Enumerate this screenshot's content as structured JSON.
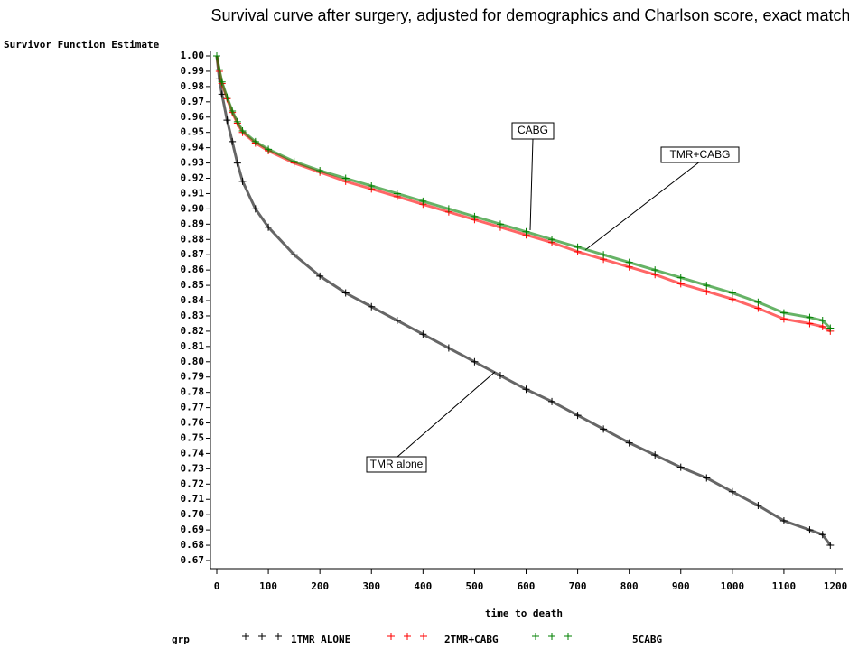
{
  "chart_data": {
    "type": "scatter",
    "title": "Survival curve after surgery, adjusted for demographics and Charlson score, exact matches",
    "y_label": "Survivor Function Estimate",
    "x_label": "time to death",
    "legend_title": "grp",
    "x": [
      0,
      5,
      10,
      20,
      30,
      40,
      50,
      75,
      100,
      150,
      200,
      250,
      300,
      350,
      400,
      450,
      500,
      550,
      600,
      650,
      700,
      750,
      800,
      850,
      900,
      950,
      1000,
      1050,
      1100,
      1150,
      1175,
      1190
    ],
    "series": [
      {
        "name": "1TMR ALONE",
        "color": "#000000",
        "values": [
          1.0,
          0.985,
          0.975,
          0.958,
          0.944,
          0.93,
          0.918,
          0.9,
          0.888,
          0.87,
          0.856,
          0.845,
          0.836,
          0.827,
          0.818,
          0.809,
          0.8,
          0.791,
          0.782,
          0.774,
          0.765,
          0.756,
          0.747,
          0.739,
          0.731,
          0.724,
          0.715,
          0.706,
          0.696,
          0.69,
          0.687,
          0.68
        ]
      },
      {
        "name": "2TMR+CABG",
        "color": "#ff0000",
        "values": [
          1.0,
          0.99,
          0.982,
          0.972,
          0.963,
          0.956,
          0.95,
          0.943,
          0.938,
          0.93,
          0.924,
          0.918,
          0.913,
          0.908,
          0.903,
          0.898,
          0.893,
          0.888,
          0.883,
          0.878,
          0.872,
          0.867,
          0.862,
          0.857,
          0.851,
          0.846,
          0.841,
          0.835,
          0.828,
          0.825,
          0.823,
          0.82
        ]
      },
      {
        "name": "5CABG",
        "color": "#008000",
        "values": [
          1.0,
          0.991,
          0.983,
          0.973,
          0.964,
          0.957,
          0.951,
          0.944,
          0.939,
          0.931,
          0.925,
          0.92,
          0.915,
          0.91,
          0.905,
          0.9,
          0.895,
          0.89,
          0.885,
          0.88,
          0.875,
          0.87,
          0.865,
          0.86,
          0.855,
          0.85,
          0.845,
          0.839,
          0.832,
          0.829,
          0.827,
          0.822
        ]
      }
    ],
    "annotations": [
      "CABG",
      "TMR+CABG",
      "TMR alone"
    ],
    "xlim": [
      0,
      1200
    ],
    "xticks": [
      0,
      100,
      200,
      300,
      400,
      500,
      600,
      700,
      800,
      900,
      1000,
      1100,
      1200
    ],
    "ylim": [
      0.67,
      1.0
    ],
    "yticks": [
      {
        "value": 1.0,
        "label": "1.00"
      },
      0.99,
      0.98,
      0.97,
      0.96,
      0.95,
      0.94,
      0.93,
      0.92,
      0.91,
      {
        "value": 0.9,
        "label": "0.90"
      },
      0.89,
      0.88,
      0.87,
      0.86,
      0.85,
      0.84,
      0.83,
      0.82,
      0.81,
      {
        "value": 0.8,
        "label": "0.80"
      },
      0.79,
      0.78,
      0.77,
      0.76,
      0.75,
      0.74,
      0.73,
      0.72,
      0.71,
      {
        "value": 0.7,
        "label": "0.70"
      },
      0.69,
      0.68,
      0.67
    ]
  }
}
